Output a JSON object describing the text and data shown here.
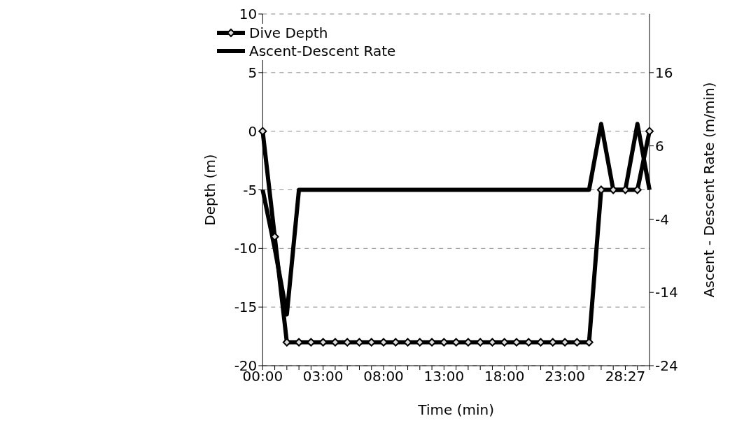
{
  "chart_data": {
    "type": "line",
    "xlabel": "Time (min)",
    "ylabel": "Depth (m)",
    "y2label": "Ascent - Descent Rate (m/min)",
    "categories": [
      "00:00",
      null,
      null,
      null,
      null,
      "03:00",
      null,
      null,
      null,
      null,
      "08:00",
      null,
      null,
      null,
      null,
      "13:00",
      null,
      null,
      null,
      null,
      "18:00",
      null,
      null,
      null,
      null,
      "23:00",
      null,
      null,
      null,
      null,
      "28:27",
      null,
      null
    ],
    "series": [
      {
        "name": "Dive Depth",
        "color": "#000000",
        "marker": "diamond",
        "values": [
          0,
          -9,
          -18,
          -18,
          -18,
          -18,
          -18,
          -18,
          -18,
          -18,
          -18,
          -18,
          -18,
          -18,
          -18,
          -18,
          -18,
          -18,
          -18,
          -18,
          -18,
          -18,
          -18,
          -18,
          -18,
          -18,
          -18,
          -18,
          -5,
          -5,
          -5,
          -5,
          0
        ]
      },
      {
        "name": "Ascent-Descent Rate",
        "color": "#000000",
        "axis": "y2",
        "marker": "none",
        "values": [
          0,
          -8,
          -17,
          0,
          0,
          0,
          0,
          0,
          0,
          0,
          0,
          0,
          0,
          0,
          0,
          0,
          0,
          0,
          0,
          0,
          0,
          0,
          0,
          0,
          0,
          0,
          0,
          0,
          9,
          0,
          0,
          9,
          0
        ]
      }
    ],
    "ylim": [
      -20,
      10
    ],
    "yticks": [
      -20,
      -15,
      -10,
      -5,
      0,
      5,
      10
    ],
    "y2lim": [
      -24,
      24
    ],
    "y2ticks": [
      -24,
      -14,
      -4,
      6,
      16
    ],
    "grid": "y",
    "legend": "top left",
    "line_style": "solid"
  }
}
